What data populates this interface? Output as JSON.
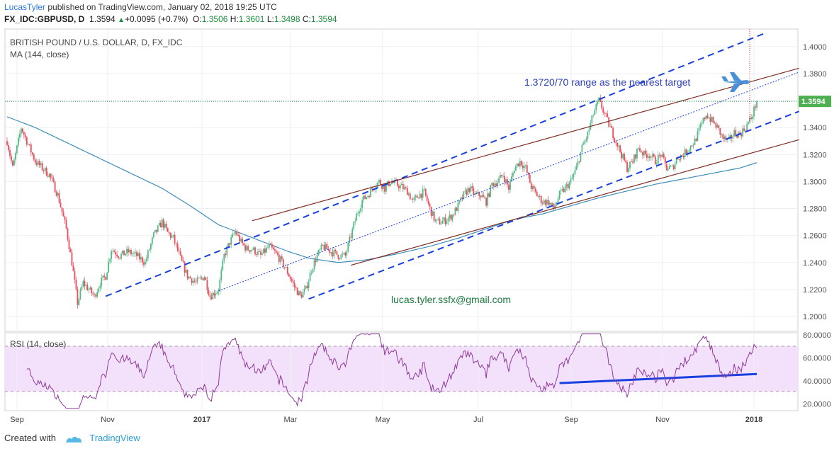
{
  "header": {
    "author": "LucasTyler",
    "published": "published on TradingView.com, January 02, 2018 19:25 UTC",
    "symbol": "FX_IDC:GBPUSD, D",
    "last": "1.3594",
    "change": "+0.0095 (+0.7%)",
    "o_label": "O:",
    "o": "1.3506",
    "h_label": "H:",
    "h": "1.3601",
    "l_label": "L:",
    "l": "1.3498",
    "c_label": "C:",
    "c": "1.3594"
  },
  "footer": {
    "created_with": "Created with",
    "brand": "TradingView"
  },
  "colors": {
    "up": "#53b987",
    "down": "#eb4d5c",
    "ma": "#3d8eb9",
    "rsi": "#8e3a9a",
    "rsi_band": "#f3e1fb",
    "channel_blue": "#1a3fe0",
    "channel_brown": "#7d2c22",
    "price_line": "#1a8f3a",
    "annotation": "#2c3fb8",
    "email": "#1a7a3a"
  },
  "icons": [
    "airplane-icon",
    "tradingview-logo-icon"
  ],
  "chart_data": {
    "type": "candlestick",
    "title": "BRITISH POUND / U.S. DOLLAR, D, FX_IDC",
    "indicator": "MA (144, close)",
    "annotation": "1.3720/70 range as the nearest target",
    "watermark_text": "lucas.tyler.ssfx@gmail.com",
    "last_price_label": "1.3594",
    "last_price": 1.3594,
    "x_ticks": [
      "Sep",
      "Nov",
      "2017",
      "Mar",
      "May",
      "Jul",
      "Sep",
      "Nov",
      "2018"
    ],
    "y_ticks": [
      "1.4000",
      "1.3800",
      "1.3600",
      "1.3400",
      "1.3200",
      "1.3000",
      "1.2800",
      "1.2600",
      "1.2400",
      "1.2200",
      "1.2000"
    ],
    "y_range": [
      1.189,
      1.413
    ],
    "price_anchors": [
      [
        0,
        1.33
      ],
      [
        4,
        1.31
      ],
      [
        10,
        1.34
      ],
      [
        14,
        1.33
      ],
      [
        20,
        1.315
      ],
      [
        30,
        1.305
      ],
      [
        36,
        1.29
      ],
      [
        42,
        1.265
      ],
      [
        46,
        1.24
      ],
      [
        50,
        1.21
      ],
      [
        54,
        1.225
      ],
      [
        58,
        1.22
      ],
      [
        62,
        1.215
      ],
      [
        66,
        1.225
      ],
      [
        70,
        1.23
      ],
      [
        74,
        1.25
      ],
      [
        80,
        1.245
      ],
      [
        86,
        1.248
      ],
      [
        92,
        1.245
      ],
      [
        98,
        1.24
      ],
      [
        104,
        1.26
      ],
      [
        110,
        1.27
      ],
      [
        114,
        1.262
      ],
      [
        118,
        1.258
      ],
      [
        124,
        1.24
      ],
      [
        128,
        1.23
      ],
      [
        134,
        1.225
      ],
      [
        140,
        1.23
      ],
      [
        144,
        1.215
      ],
      [
        150,
        1.22
      ],
      [
        154,
        1.245
      ],
      [
        158,
        1.255
      ],
      [
        162,
        1.263
      ],
      [
        166,
        1.255
      ],
      [
        170,
        1.25
      ],
      [
        174,
        1.25
      ],
      [
        180,
        1.245
      ],
      [
        186,
        1.252
      ],
      [
        192,
        1.245
      ],
      [
        198,
        1.235
      ],
      [
        204,
        1.222
      ],
      [
        208,
        1.215
      ],
      [
        212,
        1.22
      ],
      [
        216,
        1.235
      ],
      [
        220,
        1.245
      ],
      [
        224,
        1.252
      ],
      [
        230,
        1.248
      ],
      [
        236,
        1.245
      ],
      [
        240,
        1.245
      ],
      [
        244,
        1.26
      ],
      [
        248,
        1.275
      ],
      [
        252,
        1.286
      ],
      [
        256,
        1.29
      ],
      [
        260,
        1.296
      ],
      [
        264,
        1.3
      ],
      [
        268,
        1.295
      ],
      [
        272,
        1.3
      ],
      [
        276,
        1.298
      ],
      [
        280,
        1.296
      ],
      [
        284,
        1.293
      ],
      [
        288,
        1.285
      ],
      [
        292,
        1.29
      ],
      [
        296,
        1.292
      ],
      [
        300,
        1.28
      ],
      [
        304,
        1.27
      ],
      [
        308,
        1.27
      ],
      [
        312,
        1.272
      ],
      [
        316,
        1.275
      ],
      [
        320,
        1.282
      ],
      [
        324,
        1.29
      ],
      [
        328,
        1.295
      ],
      [
        332,
        1.29
      ],
      [
        336,
        1.29
      ],
      [
        340,
        1.285
      ],
      [
        344,
        1.298
      ],
      [
        348,
        1.3
      ],
      [
        352,
        1.305
      ],
      [
        356,
        1.295
      ],
      [
        360,
        1.31
      ],
      [
        364,
        1.315
      ],
      [
        368,
        1.31
      ],
      [
        372,
        1.296
      ],
      [
        376,
        1.29
      ],
      [
        380,
        1.285
      ],
      [
        384,
        1.285
      ],
      [
        388,
        1.28
      ],
      [
        392,
        1.29
      ],
      [
        396,
        1.295
      ],
      [
        400,
        1.3
      ],
      [
        404,
        1.31
      ],
      [
        408,
        1.325
      ],
      [
        412,
        1.335
      ],
      [
        416,
        1.35
      ],
      [
        420,
        1.36
      ],
      [
        424,
        1.35
      ],
      [
        428,
        1.34
      ],
      [
        432,
        1.33
      ],
      [
        436,
        1.32
      ],
      [
        440,
        1.31
      ],
      [
        444,
        1.315
      ],
      [
        448,
        1.325
      ],
      [
        452,
        1.32
      ],
      [
        456,
        1.32
      ],
      [
        460,
        1.315
      ],
      [
        464,
        1.32
      ],
      [
        468,
        1.31
      ],
      [
        472,
        1.31
      ],
      [
        476,
        1.318
      ],
      [
        480,
        1.32
      ],
      [
        484,
        1.325
      ],
      [
        488,
        1.33
      ],
      [
        492,
        1.34
      ],
      [
        496,
        1.35
      ],
      [
        500,
        1.345
      ],
      [
        504,
        1.34
      ],
      [
        508,
        1.332
      ],
      [
        512,
        1.33
      ],
      [
        516,
        1.336
      ],
      [
        520,
        1.335
      ],
      [
        524,
        1.34
      ],
      [
        528,
        1.347
      ],
      [
        532,
        1.3594
      ]
    ],
    "ma_anchors": [
      [
        0,
        1.348
      ],
      [
        20,
        1.34
      ],
      [
        50,
        1.325
      ],
      [
        80,
        1.31
      ],
      [
        110,
        1.295
      ],
      [
        130,
        1.282
      ],
      [
        150,
        1.268
      ],
      [
        165,
        1.262
      ],
      [
        180,
        1.256
      ],
      [
        200,
        1.248
      ],
      [
        215,
        1.243
      ],
      [
        235,
        1.24
      ],
      [
        255,
        1.242
      ],
      [
        275,
        1.246
      ],
      [
        300,
        1.252
      ],
      [
        320,
        1.258
      ],
      [
        340,
        1.265
      ],
      [
        360,
        1.272
      ],
      [
        380,
        1.276
      ],
      [
        400,
        1.282
      ],
      [
        420,
        1.288
      ],
      [
        440,
        1.293
      ],
      [
        460,
        1.298
      ],
      [
        480,
        1.302
      ],
      [
        500,
        1.306
      ],
      [
        520,
        1.31
      ],
      [
        532,
        1.314
      ]
    ],
    "rsi": {
      "label": "RSI (14, close)",
      "y_ticks": [
        "80.0000",
        "60.0000",
        "40.0000",
        "20.0000"
      ],
      "y_range": [
        14,
        82
      ],
      "upper_band": 70,
      "lower_band": 30,
      "last": 69
    },
    "trend_lines": {
      "blue_upper": [
        [
          70,
          1.215
        ],
        [
          538,
          1.41
        ]
      ],
      "blue_lower": [
        [
          214,
          1.213
        ],
        [
          562,
          1.352
        ]
      ],
      "blue_mid_dotted": [
        [
          150,
          1.219
        ],
        [
          562,
          1.381
        ]
      ],
      "brown_upper": [
        [
          174,
          1.271
        ],
        [
          562,
          1.384
        ]
      ],
      "brown_lower": [
        [
          244,
          1.238
        ],
        [
          562,
          1.331
        ]
      ],
      "rsi_trend": [
        [
          392,
          38
        ],
        [
          532,
          46
        ]
      ]
    },
    "grid": true
  }
}
